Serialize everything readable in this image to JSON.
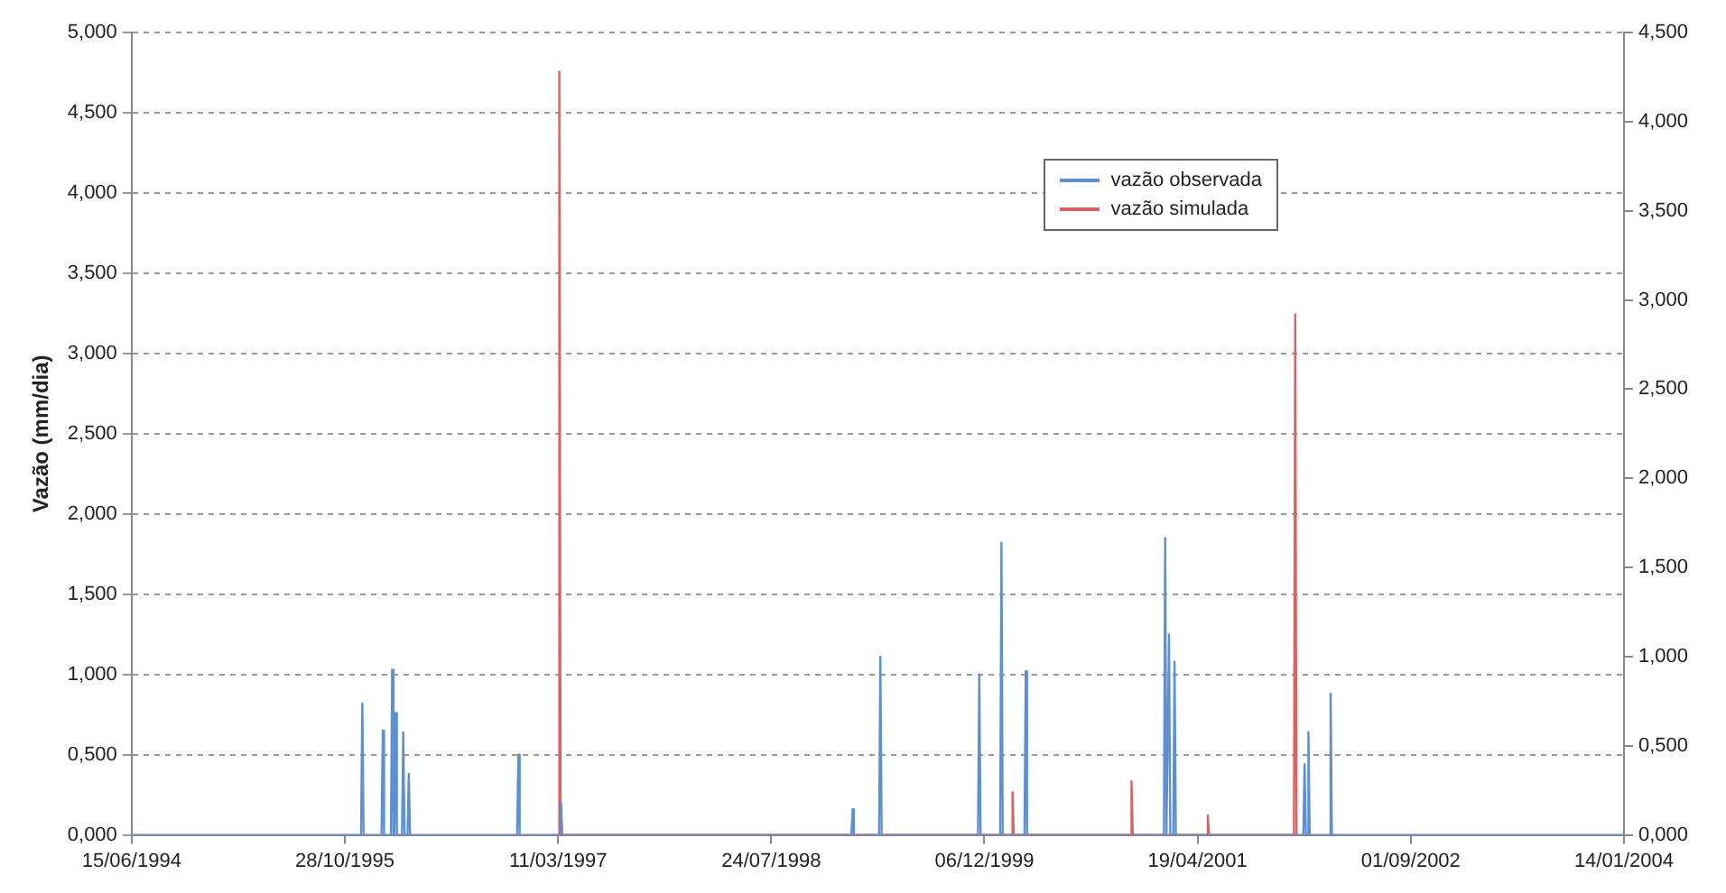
{
  "chart_data": {
    "type": "line",
    "ylabel": "Vazão (mm/dia)",
    "xlim": [
      "1994-06-15",
      "2004-01-14"
    ],
    "xticks": [
      {
        "value": "1994-06-15",
        "label": "15/06/1994"
      },
      {
        "value": "1995-10-28",
        "label": "28/10/1995"
      },
      {
        "value": "1997-03-11",
        "label": "11/03/1997"
      },
      {
        "value": "1998-07-24",
        "label": "24/07/1998"
      },
      {
        "value": "1999-12-06",
        "label": "06/12/1999"
      },
      {
        "value": "2001-04-19",
        "label": "19/04/2001"
      },
      {
        "value": "2002-09-01",
        "label": "01/09/2002"
      },
      {
        "value": "2004-01-14",
        "label": "14/01/2004"
      }
    ],
    "ylim": [
      0,
      5
    ],
    "yticks": [
      {
        "value": 0,
        "label": "0,000"
      },
      {
        "value": 0.5,
        "label": "0,500"
      },
      {
        "value": 1,
        "label": "1,000"
      },
      {
        "value": 1.5,
        "label": "1,500"
      },
      {
        "value": 2,
        "label": "2,000"
      },
      {
        "value": 2.5,
        "label": "2,500"
      },
      {
        "value": 3,
        "label": "3,000"
      },
      {
        "value": 3.5,
        "label": "3,500"
      },
      {
        "value": 4,
        "label": "4,000"
      },
      {
        "value": 4.5,
        "label": "4,500"
      },
      {
        "value": 5,
        "label": "5,000"
      }
    ],
    "y2lim": [
      0,
      4.5
    ],
    "y2ticks": [
      {
        "value": 0,
        "label": "0,000"
      },
      {
        "value": 0.5,
        "label": "0,500"
      },
      {
        "value": 1,
        "label": "1,000"
      },
      {
        "value": 1.5,
        "label": "1,500"
      },
      {
        "value": 2,
        "label": "2,000"
      },
      {
        "value": 2.5,
        "label": "2,500"
      },
      {
        "value": 3,
        "label": "3,000"
      },
      {
        "value": 3.5,
        "label": "3,500"
      },
      {
        "value": 4,
        "label": "4,000"
      },
      {
        "value": 4.5,
        "label": "4,500"
      }
    ],
    "grid": "y",
    "legend": "top right",
    "marker": "none",
    "line_style": "solid",
    "series": [
      {
        "name": "vazão observada",
        "color": "#5b8fd6",
        "x": [
          "1994-06-15",
          "1995-12-05",
          "1995-12-08",
          "1995-12-11",
          "1996-01-22",
          "1996-01-25",
          "1996-01-28",
          "1996-02-13",
          "1996-02-16",
          "1996-02-19",
          "1996-02-21",
          "1996-02-24",
          "1996-02-27",
          "1996-03-10",
          "1996-03-13",
          "1996-03-16",
          "1996-03-23",
          "1996-03-26",
          "1996-03-29",
          "1996-12-05",
          "1996-12-08",
          "1996-12-11",
          "1997-03-15",
          "1997-03-18",
          "1997-03-21",
          "1999-01-28",
          "1999-01-31",
          "1999-02-03",
          "1999-04-03",
          "1999-04-06",
          "1999-04-09",
          "1999-11-21",
          "1999-11-24",
          "1999-11-27",
          "2000-01-12",
          "2000-01-15",
          "2000-01-18",
          "2000-03-09",
          "2000-03-12",
          "2000-03-15",
          "2001-01-30",
          "2001-02-02",
          "2001-02-05",
          "2001-02-08",
          "2001-02-11",
          "2001-02-14",
          "2001-02-21",
          "2001-02-24",
          "2001-02-27",
          "2001-12-23",
          "2001-12-26",
          "2001-12-29",
          "2002-01-01",
          "2002-01-04",
          "2002-01-07",
          "2002-02-22",
          "2002-02-25",
          "2002-02-28",
          "2004-01-14"
        ],
        "values": [
          0,
          0,
          0.82,
          0,
          0,
          0.65,
          0,
          0,
          1.03,
          0,
          0,
          0.76,
          0,
          0,
          0.64,
          0,
          0,
          0.38,
          0,
          0,
          0.5,
          0,
          0,
          0.2,
          0,
          0,
          0.16,
          0,
          0,
          1.11,
          0,
          0,
          1.0,
          0,
          0,
          1.82,
          0,
          0,
          1.02,
          0,
          0,
          1.85,
          0,
          0,
          1.25,
          0,
          0,
          1.08,
          0,
          0,
          0.44,
          0,
          0,
          0.64,
          0,
          0,
          0.88,
          0,
          0
        ]
      },
      {
        "name": "vazão simulada",
        "color": "#e06060",
        "axis": "y2",
        "x": [
          "1997-03-11",
          "1997-03-14",
          "1997-03-17",
          "2000-02-07",
          "2000-02-10",
          "2000-02-13",
          "2000-11-12",
          "2000-11-15",
          "2000-11-18",
          "2001-05-10",
          "2001-05-13",
          "2001-05-16",
          "2001-12-01",
          "2001-12-04",
          "2001-12-07"
        ],
        "values": [
          0,
          4.28,
          0,
          0,
          0.24,
          0,
          0,
          0.3,
          0,
          0,
          0.11,
          0,
          0,
          2.92,
          0
        ]
      }
    ]
  }
}
